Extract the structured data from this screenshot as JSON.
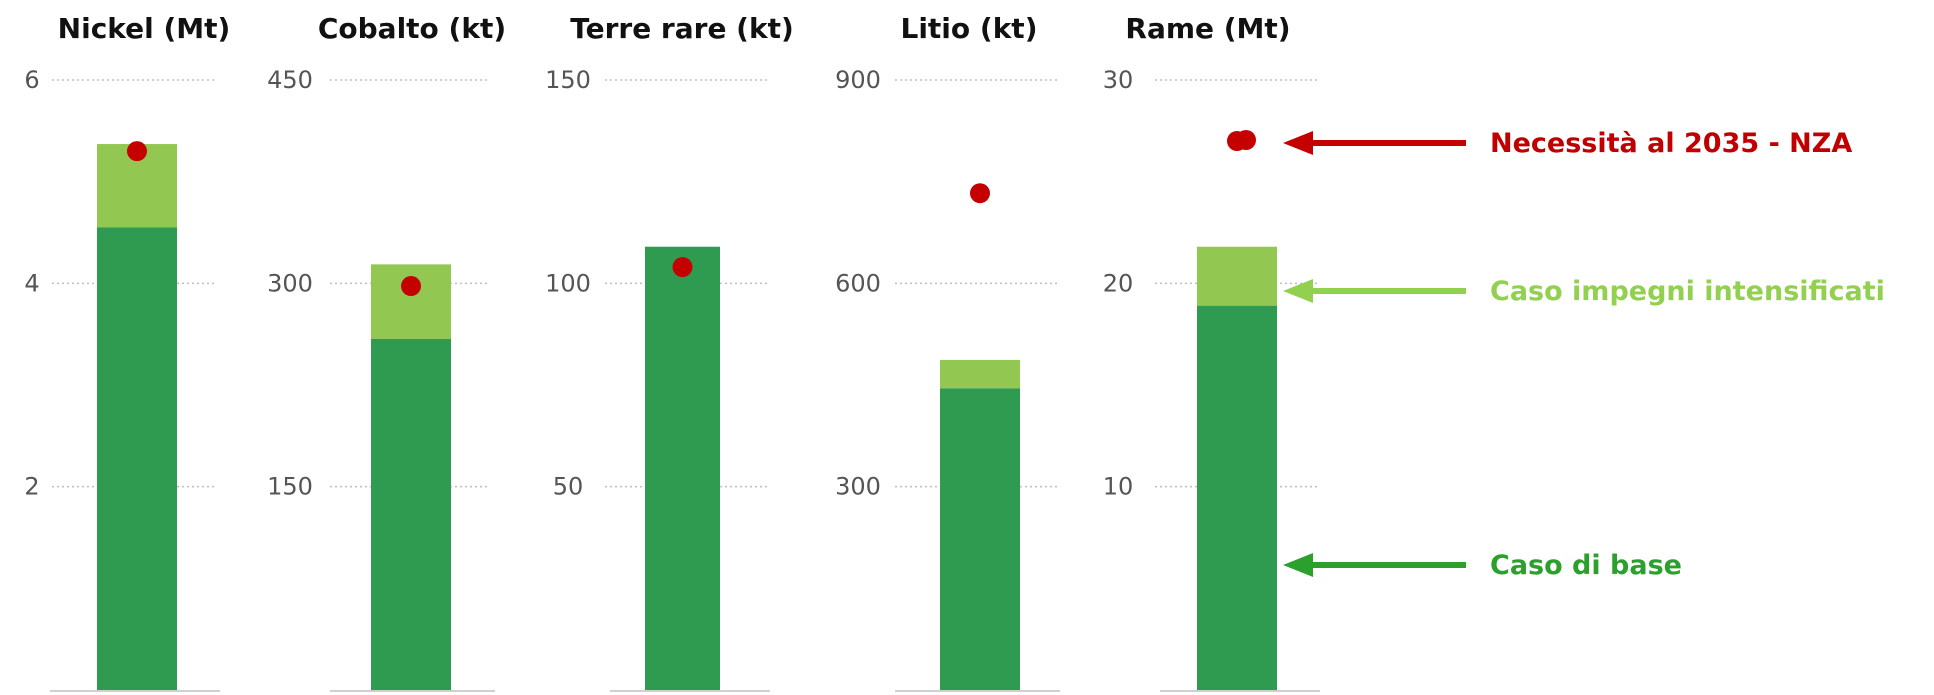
{
  "chart_data": [
    {
      "type": "bar",
      "title": "Nickel (Mt)",
      "ylim": [
        0,
        6
      ],
      "yticks": [
        "6",
        "4",
        "2"
      ],
      "ytick_values": [
        6,
        4,
        2
      ],
      "series": [
        {
          "name": "Caso di base",
          "values": [
            4.55
          ]
        },
        {
          "name": "Caso impegni intensificati",
          "values": [
            5.37
          ]
        },
        {
          "name": "Necessità al 2035 - NZA",
          "values": [
            5.3
          ]
        }
      ]
    },
    {
      "type": "bar",
      "title": "Cobalto (kt)",
      "ylim": [
        0,
        450
      ],
      "yticks": [
        "450",
        "300",
        "150"
      ],
      "ytick_values": [
        450,
        300,
        150
      ],
      "series": [
        {
          "name": "Caso di base",
          "values": [
            259
          ]
        },
        {
          "name": "Caso impegni intensificati",
          "values": [
            314
          ]
        },
        {
          "name": "Necessità al 2035 - NZA",
          "values": [
            298
          ]
        }
      ]
    },
    {
      "type": "bar",
      "title": "Terre rare (kt)",
      "ylim": [
        0,
        150
      ],
      "yticks": [
        "150",
        "100",
        "50"
      ],
      "ytick_values": [
        150,
        100,
        50
      ],
      "series": [
        {
          "name": "Caso di base",
          "values": [
            109
          ]
        },
        {
          "name": "Caso impegni intensificati",
          "values": [
            109
          ]
        },
        {
          "name": "Necessità al 2035 - NZA",
          "values": [
            104
          ]
        }
      ]
    },
    {
      "type": "bar",
      "title": "Litio (kt)",
      "ylim": [
        0,
        900
      ],
      "yticks": [
        "900",
        "600",
        "300"
      ],
      "ytick_values": [
        900,
        600,
        300
      ],
      "series": [
        {
          "name": "Caso di base",
          "values": [
            445
          ]
        },
        {
          "name": "Caso impegni intensificati",
          "values": [
            487
          ]
        },
        {
          "name": "Necessità al 2035 - NZA",
          "values": [
            733
          ]
        }
      ]
    },
    {
      "type": "bar",
      "title": "Rame (Mt)",
      "ylim": [
        0,
        30
      ],
      "yticks": [
        "30",
        "20",
        "10"
      ],
      "ytick_values": [
        30,
        20,
        10
      ],
      "series": [
        {
          "name": "Caso di base",
          "values": [
            18.9
          ]
        },
        {
          "name": "Caso impegni intensificati",
          "values": [
            21.8
          ]
        },
        {
          "name": "Necessità al 2035 - NZA",
          "values": [
            27.0
          ]
        }
      ]
    }
  ],
  "legend": {
    "nza_label": "Necessità al 2035 - NZA",
    "intensified_label": "Caso impegni intensificati",
    "base_label": "Caso di base"
  },
  "colors": {
    "base": "#2e9b50",
    "intensified": "#92c752",
    "nza": "#c40000",
    "nza_text": "#c00000",
    "intensified_text": "#92d050",
    "base_text": "#2ca02c",
    "grid": "#bfbfbf",
    "baseline": "#d0d0d0"
  }
}
